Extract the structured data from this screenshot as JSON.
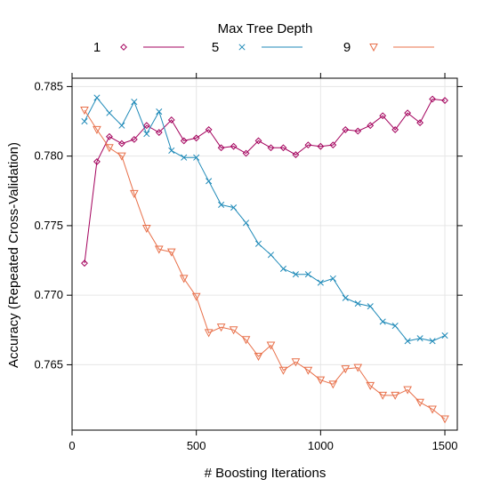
{
  "chart_data": {
    "type": "line",
    "xlabel": "# Boosting Iterations",
    "ylabel": "Accuracy (Repeated Cross-Validation)",
    "xlim": [
      0,
      1550
    ],
    "ylim": [
      0.7603,
      0.7856
    ],
    "xticks": [
      0,
      500,
      1000,
      1500
    ],
    "yticks": [
      0.765,
      0.77,
      0.775,
      0.78,
      0.785
    ],
    "xtick_labels": [
      "0",
      "500",
      "1000",
      "1500"
    ],
    "ytick_labels": [
      "0.765",
      "0.770",
      "0.775",
      "0.780",
      "0.785"
    ],
    "grid": true,
    "legend": {
      "title": "Max Tree Depth",
      "placement": "top"
    },
    "x": [
      50,
      100,
      150,
      200,
      250,
      300,
      350,
      400,
      450,
      500,
      550,
      600,
      650,
      700,
      750,
      800,
      850,
      900,
      950,
      1000,
      1050,
      1100,
      1150,
      1200,
      1250,
      1300,
      1350,
      1400,
      1450,
      1500
    ],
    "series": [
      {
        "name": "1",
        "color": "#a3005c",
        "marker": "diamond",
        "values": [
          0.7723,
          0.7796,
          0.7814,
          0.7809,
          0.7812,
          0.7822,
          0.7817,
          0.7826,
          0.7811,
          0.7813,
          0.7819,
          0.7806,
          0.7807,
          0.7802,
          0.7811,
          0.7806,
          0.7806,
          0.7801,
          0.7808,
          0.7807,
          0.7808,
          0.7819,
          0.7818,
          0.7822,
          0.7829,
          0.7819,
          0.7831,
          0.7824,
          0.7841,
          0.784
        ]
      },
      {
        "name": "5",
        "color": "#1f8ab8",
        "marker": "x",
        "values": [
          0.7825,
          0.7842,
          0.7831,
          0.7822,
          0.7839,
          0.7816,
          0.7832,
          0.7804,
          0.7799,
          0.7799,
          0.7782,
          0.7765,
          0.7763,
          0.7752,
          0.7737,
          0.7729,
          0.7719,
          0.7715,
          0.7715,
          0.7709,
          0.7712,
          0.7698,
          0.7694,
          0.7692,
          0.7681,
          0.7678,
          0.7667,
          0.7669,
          0.7667,
          0.7671
        ]
      },
      {
        "name": "9",
        "color": "#e8704a",
        "marker": "triangle-down",
        "values": [
          0.7833,
          0.7819,
          0.7806,
          0.78,
          0.7773,
          0.7748,
          0.7733,
          0.7731,
          0.7712,
          0.7699,
          0.7673,
          0.7677,
          0.7675,
          0.7668,
          0.7656,
          0.7664,
          0.7646,
          0.7652,
          0.7646,
          0.7639,
          0.7636,
          0.7647,
          0.7648,
          0.7635,
          0.7628,
          0.7628,
          0.7632,
          0.7623,
          0.7618,
          0.7611
        ]
      }
    ]
  }
}
